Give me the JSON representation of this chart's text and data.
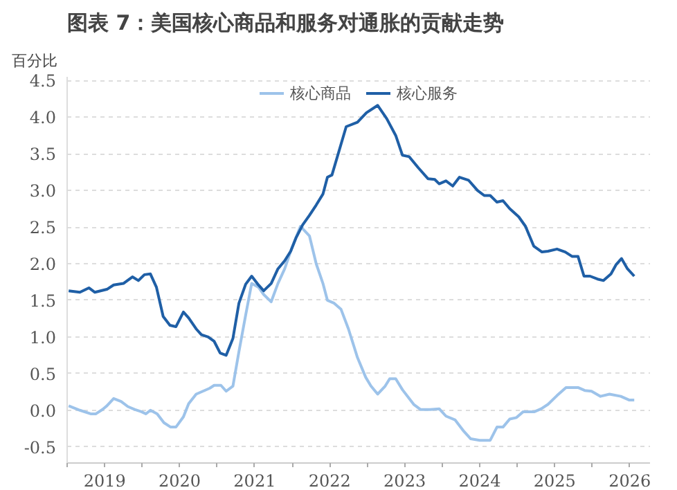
{
  "chart_data": {
    "type": "line",
    "title": "图表 7：美国核心商品和服务对通胀的贡献走势",
    "ylabel": "百分比",
    "xlim": [
      2019,
      2026.77
    ],
    "ylim": [
      -0.72,
      4.55
    ],
    "xticks": [
      {
        "value": 2019,
        "label": null
      },
      {
        "value": 2019.5,
        "label": "2019"
      },
      {
        "value": 2020,
        "label": null
      },
      {
        "value": 2020.5,
        "label": "2020"
      },
      {
        "value": 2021,
        "label": null
      },
      {
        "value": 2021.5,
        "label": "2021"
      },
      {
        "value": 2022,
        "label": null
      },
      {
        "value": 2022.5,
        "label": "2022"
      },
      {
        "value": 2023,
        "label": null
      },
      {
        "value": 2023.5,
        "label": "2023"
      },
      {
        "value": 2024,
        "label": null
      },
      {
        "value": 2024.5,
        "label": "2024"
      },
      {
        "value": 2025,
        "label": null
      },
      {
        "value": 2025.5,
        "label": "2025"
      },
      {
        "value": 2026,
        "label": null
      },
      {
        "value": 2026.5,
        "label": "2026"
      }
    ],
    "yticks": [
      {
        "value": -0.5,
        "label": "-0.5"
      },
      {
        "value": 0,
        "label": "0.0"
      },
      {
        "value": 0.5,
        "label": "0.5"
      },
      {
        "value": 1,
        "label": "1.0"
      },
      {
        "value": 1.5,
        "label": "1.5"
      },
      {
        "value": 2,
        "label": "2.0"
      },
      {
        "value": 2.5,
        "label": "2.5"
      },
      {
        "value": 3,
        "label": "3.0"
      },
      {
        "value": 3.5,
        "label": "3.5"
      },
      {
        "value": 4,
        "label": "4.0"
      },
      {
        "value": 4.5,
        "label": "4.5"
      }
    ],
    "grid": "y",
    "legend": "top",
    "line_style": "solid",
    "series": [
      {
        "name": "核心商品",
        "color": "#9dc3ea",
        "x": [
          2019.02,
          2019.17,
          2019.32,
          2019.38,
          2019.47,
          2019.53,
          2019.62,
          2019.72,
          2019.81,
          2019.9,
          2019.99,
          2020.05,
          2020.11,
          2020.2,
          2020.29,
          2020.38,
          2020.45,
          2020.55,
          2020.62,
          2020.72,
          2020.81,
          2020.9,
          2020.96,
          2021.05,
          2021.12,
          2021.21,
          2021.29,
          2021.38,
          2021.46,
          2021.55,
          2021.62,
          2021.72,
          2021.81,
          2021.9,
          2021.99,
          2022.11,
          2022.23,
          2022.32,
          2022.41,
          2022.47,
          2022.56,
          2022.65,
          2022.75,
          2022.87,
          2022.98,
          2023.05,
          2023.14,
          2023.24,
          2023.3,
          2023.38,
          2023.47,
          2023.62,
          2023.71,
          2023.84,
          2023.96,
          2024.05,
          2024.17,
          2024.29,
          2024.38,
          2024.5,
          2024.64,
          2024.73,
          2024.81,
          2024.9,
          2024.99,
          2025.08,
          2025.23,
          2025.32,
          2025.41,
          2025.53,
          2025.65,
          2025.81,
          2025.9,
          2025.99,
          2026.11,
          2026.23,
          2026.38,
          2026.49,
          2026.56
        ],
        "values": [
          0.06,
          0.0,
          -0.05,
          -0.05,
          0.01,
          0.06,
          0.16,
          0.12,
          0.05,
          0.01,
          -0.02,
          -0.05,
          0.0,
          -0.05,
          -0.17,
          -0.23,
          -0.23,
          -0.09,
          0.09,
          0.22,
          0.26,
          0.3,
          0.34,
          0.34,
          0.26,
          0.33,
          0.8,
          1.3,
          1.73,
          1.68,
          1.58,
          1.48,
          1.73,
          1.93,
          2.2,
          2.51,
          2.38,
          2.0,
          1.73,
          1.5,
          1.46,
          1.38,
          1.11,
          0.72,
          0.45,
          0.33,
          0.22,
          0.33,
          0.43,
          0.43,
          0.28,
          0.08,
          0.01,
          0.01,
          0.02,
          -0.08,
          -0.13,
          -0.29,
          -0.39,
          -0.41,
          -0.41,
          -0.23,
          -0.23,
          -0.12,
          -0.1,
          -0.02,
          -0.02,
          0.02,
          0.08,
          0.2,
          0.31,
          0.31,
          0.27,
          0.26,
          0.19,
          0.22,
          0.19,
          0.14,
          0.14
        ]
      },
      {
        "name": "核心服务",
        "color": "#1f5fa6",
        "x": [
          2019.02,
          2019.17,
          2019.29,
          2019.37,
          2019.53,
          2019.62,
          2019.75,
          2019.87,
          2019.95,
          2020.03,
          2020.11,
          2020.19,
          2020.28,
          2020.37,
          2020.45,
          2020.55,
          2020.62,
          2020.72,
          2020.79,
          2020.88,
          2020.96,
          2021.04,
          2021.12,
          2021.21,
          2021.29,
          2021.38,
          2021.46,
          2021.55,
          2021.62,
          2021.72,
          2021.81,
          2021.9,
          2021.98,
          2022.05,
          2022.14,
          2022.23,
          2022.32,
          2022.41,
          2022.47,
          2022.53,
          2022.72,
          2022.87,
          2022.99,
          2023.14,
          2023.26,
          2023.38,
          2023.47,
          2023.56,
          2023.68,
          2023.81,
          2023.9,
          2023.96,
          2024.05,
          2024.14,
          2024.23,
          2024.35,
          2024.47,
          2024.56,
          2024.64,
          2024.73,
          2024.81,
          2024.9,
          2025.02,
          2025.11,
          2025.22,
          2025.33,
          2025.41,
          2025.53,
          2025.64,
          2025.73,
          2025.81,
          2025.89,
          2025.97,
          2026.07,
          2026.15,
          2026.25,
          2026.32,
          2026.39,
          2026.47,
          2026.56
        ],
        "values": [
          1.63,
          1.61,
          1.67,
          1.61,
          1.65,
          1.71,
          1.73,
          1.82,
          1.77,
          1.85,
          1.86,
          1.68,
          1.28,
          1.16,
          1.14,
          1.34,
          1.26,
          1.11,
          1.03,
          1.0,
          0.94,
          0.78,
          0.75,
          0.98,
          1.46,
          1.72,
          1.83,
          1.71,
          1.63,
          1.73,
          1.93,
          2.04,
          2.17,
          2.35,
          2.53,
          2.66,
          2.8,
          2.95,
          3.18,
          3.21,
          3.87,
          3.93,
          4.06,
          4.16,
          3.98,
          3.75,
          3.48,
          3.46,
          3.31,
          3.16,
          3.15,
          3.09,
          3.13,
          3.06,
          3.18,
          3.14,
          3.0,
          2.93,
          2.93,
          2.84,
          2.86,
          2.75,
          2.64,
          2.51,
          2.24,
          2.16,
          2.17,
          2.2,
          2.16,
          2.1,
          2.1,
          1.83,
          1.83,
          1.79,
          1.77,
          1.86,
          1.99,
          2.07,
          1.93,
          1.83
        ]
      }
    ]
  }
}
